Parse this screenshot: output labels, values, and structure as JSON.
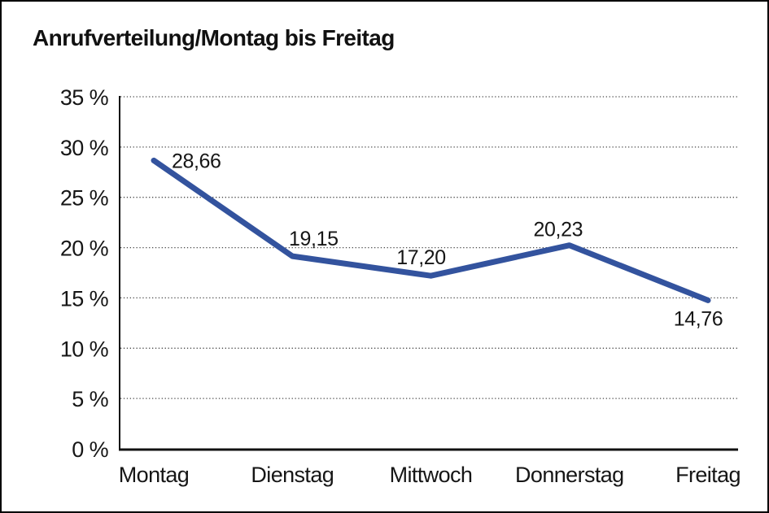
{
  "header": {
    "title": "Anrufverteilung/Montag bis Freitag"
  },
  "chart_data": {
    "type": "line",
    "title": "Anrufverteilung/Montag bis Freitag",
    "categories": [
      "Montag",
      "Dienstag",
      "Mittwoch",
      "Donnerstag",
      "Freitag"
    ],
    "values": [
      28.66,
      19.15,
      17.2,
      20.23,
      14.76
    ],
    "point_labels": [
      "28,66",
      "19,15",
      "17,20",
      "20,23",
      "14,76"
    ],
    "ytick_values": [
      0,
      5,
      10,
      15,
      20,
      25,
      30,
      35
    ],
    "ytick_labels": [
      "0 %",
      "5 %",
      "10 %",
      "15 %",
      "20 %",
      "25 %",
      "30 %",
      "35 %"
    ],
    "ylim": [
      0,
      35
    ],
    "xlabel": "",
    "ylabel": "",
    "legend": "none",
    "grid": "horizontal-dotted",
    "label_positions": [
      "right-of-point",
      "above-point",
      "above-point",
      "above-point",
      "below-point"
    ],
    "colors": {
      "line": "#33539E",
      "grid": "#4a4a4a",
      "axis": "#111111",
      "text": "#161616",
      "background": "#ffffff",
      "border": "#000000"
    }
  }
}
